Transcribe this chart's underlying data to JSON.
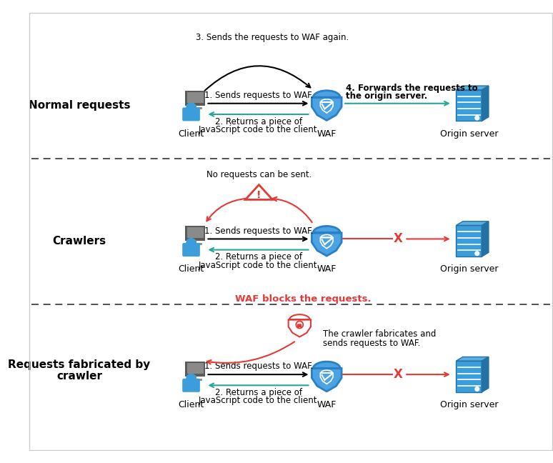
{
  "bg_color": "#ffffff",
  "blue_shield": "#4BA3E3",
  "blue_shield_edge": "#2980C4",
  "blue_person": "#3B9EDB",
  "blue_server": "#3B9EDB",
  "blue_server_dark": "#2471A3",
  "red_color": "#E53935",
  "green_color": "#26A69A",
  "black_color": "#222222",
  "gray_monitor": "#666666",
  "gray_screen": "#999999",
  "section1_label": "Normal requests",
  "section2_label": "Crawlers",
  "section3_label1": "Requests fabricated by",
  "section3_label2": "crawler",
  "client_label": "Client",
  "waf_label": "WAF",
  "server_label": "Origin server",
  "arrow1_text": "1. Sends requests to WAF.",
  "arrow2_text_l1": "2. Returns a piece of",
  "arrow2_text_l2": "JavaScript code to the client.",
  "arrow3_text": "3. Sends the requests to WAF again.",
  "arrow4_text_l1": "4. Forwards the requests to",
  "arrow4_text_l2": "the origin server.",
  "crawlers_no_req": "No requests can be sent.",
  "crawlers_arrow1": "1. Sends requests to WAF.",
  "crawlers_arrow2_l1": "2. Returns a piece of",
  "crawlers_arrow2_l2": "JavaScript code to the client.",
  "fab_waf_blocks": "WAF blocks the requests.",
  "fab_crawler_l1": "The crawler fabricates and",
  "fab_crawler_l2": "sends requests to WAF.",
  "fab_arrow1": "1. Sends requests to WAF.",
  "fab_arrow2_l1": "2. Returns a piece of",
  "fab_arrow2_l2": "JavaScript code to the client."
}
